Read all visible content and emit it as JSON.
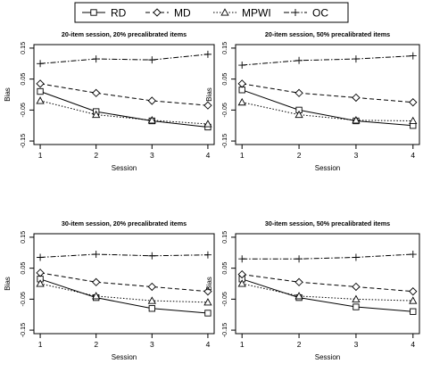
{
  "legend": {
    "placement": "top-center",
    "entries": [
      {
        "name": "RD",
        "marker": "square",
        "dash": "solid"
      },
      {
        "name": "MD",
        "marker": "diamond",
        "dash": "dashed"
      },
      {
        "name": "MPWI",
        "marker": "triangle",
        "dash": "dotted"
      },
      {
        "name": "OC",
        "marker": "plus",
        "dash": "dashdot"
      }
    ]
  },
  "chart_data": [
    {
      "type": "line",
      "title": "20-item session, 20% precalibrated items",
      "xlabel": "Session",
      "ylabel": "Bias",
      "x": [
        1,
        2,
        3,
        4
      ],
      "xticks": [
        "1",
        "2",
        "3",
        "4"
      ],
      "yticks": [
        "-0.15",
        "-0.05",
        "0.05",
        "0.15"
      ],
      "ylim": [
        -0.15,
        0.15
      ],
      "grid": false,
      "series": [
        {
          "name": "RD",
          "values": [
            0.01,
            -0.055,
            -0.085,
            -0.105
          ]
        },
        {
          "name": "MD",
          "values": [
            0.035,
            0.005,
            -0.02,
            -0.035
          ]
        },
        {
          "name": "MPWI",
          "values": [
            -0.02,
            -0.065,
            -0.083,
            -0.095
          ]
        },
        {
          "name": "OC",
          "values": [
            0.1,
            0.115,
            0.112,
            0.13
          ]
        }
      ]
    },
    {
      "type": "line",
      "title": "20-item session, 50% precalibrated items",
      "xlabel": "Session",
      "ylabel": "Bias",
      "x": [
        1,
        2,
        3,
        4
      ],
      "xticks": [
        "1",
        "2",
        "3",
        "4"
      ],
      "yticks": [
        "-0.15",
        "-0.05",
        "0.05",
        "0.15"
      ],
      "ylim": [
        -0.15,
        0.15
      ],
      "grid": false,
      "series": [
        {
          "name": "RD",
          "values": [
            0.015,
            -0.05,
            -0.085,
            -0.1
          ]
        },
        {
          "name": "MD",
          "values": [
            0.035,
            0.005,
            -0.01,
            -0.025
          ]
        },
        {
          "name": "MPWI",
          "values": [
            -0.025,
            -0.065,
            -0.083,
            -0.085
          ]
        },
        {
          "name": "OC",
          "values": [
            0.095,
            0.11,
            0.115,
            0.125
          ]
        }
      ]
    },
    {
      "type": "line",
      "title": "30-item session, 20% precalibrated items",
      "xlabel": "Session",
      "ylabel": "Bias",
      "x": [
        1,
        2,
        3,
        4
      ],
      "xticks": [
        "1",
        "2",
        "3",
        "4"
      ],
      "yticks": [
        "-0.15",
        "-0.05",
        "0.05",
        "0.15"
      ],
      "ylim": [
        -0.15,
        0.15
      ],
      "grid": false,
      "series": [
        {
          "name": "RD",
          "values": [
            0.015,
            -0.045,
            -0.08,
            -0.095
          ]
        },
        {
          "name": "MD",
          "values": [
            0.035,
            0.005,
            -0.01,
            -0.025
          ]
        },
        {
          "name": "MPWI",
          "values": [
            0.0,
            -0.04,
            -0.055,
            -0.06
          ]
        },
        {
          "name": "OC",
          "values": [
            0.085,
            0.095,
            0.09,
            0.093
          ]
        }
      ]
    },
    {
      "type": "line",
      "title": "30-item session, 50% precalibrated items",
      "xlabel": "Session",
      "ylabel": "Bias",
      "x": [
        1,
        2,
        3,
        4
      ],
      "xticks": [
        "1",
        "2",
        "3",
        "4"
      ],
      "yticks": [
        "-0.15",
        "-0.05",
        "0.05",
        "0.15"
      ],
      "ylim": [
        -0.15,
        0.15
      ],
      "grid": false,
      "series": [
        {
          "name": "RD",
          "values": [
            0.015,
            -0.045,
            -0.075,
            -0.09
          ]
        },
        {
          "name": "MD",
          "values": [
            0.03,
            0.005,
            -0.01,
            -0.025
          ]
        },
        {
          "name": "MPWI",
          "values": [
            0.0,
            -0.04,
            -0.05,
            -0.055
          ]
        },
        {
          "name": "OC",
          "values": [
            0.08,
            0.08,
            0.085,
            0.095
          ]
        }
      ]
    }
  ]
}
